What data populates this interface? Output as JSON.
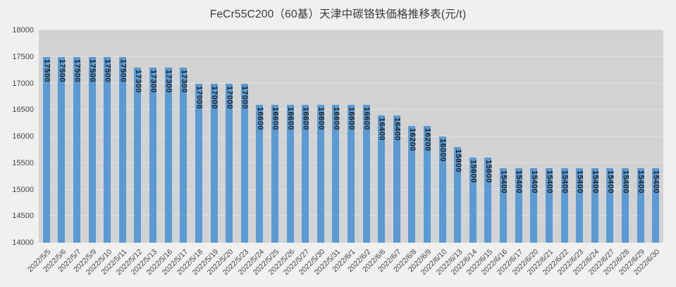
{
  "page": {
    "background": "#f0f0ef"
  },
  "chart_data": {
    "type": "bar",
    "title": "FeCr55C200（60基）天津中碳铬铁価格推移表(元/t)",
    "xlabel": "",
    "ylabel": "",
    "categories": [
      "2022/5/5",
      "2022/5/6",
      "2022/5/7",
      "2022/5/9",
      "2022/5/10",
      "2022/5/11",
      "2022/5/12",
      "2022/5/13",
      "2022/5/16",
      "2022/5/17",
      "2022/5/18",
      "2022/5/19",
      "2022/5/20",
      "2022/5/23",
      "2022/5/24",
      "2022/5/25",
      "2022/5/26",
      "2022/5/27",
      "2022/5/30",
      "2022/5/31",
      "2022/6/1",
      "2022/6/2",
      "2022/6/6",
      "2022/6/7",
      "2022/6/8",
      "2022/6/9",
      "2022/6/10",
      "2022/6/13",
      "2022/6/14",
      "2022/6/15",
      "2022/6/16",
      "2022/6/17",
      "2022/6/20",
      "2022/6/21",
      "2022/6/22",
      "2022/6/23",
      "2022/6/24",
      "2022/6/27",
      "2022/6/28",
      "2022/6/29",
      "2022/6/30"
    ],
    "values": [
      17500,
      17500,
      17500,
      17500,
      17500,
      17500,
      17300,
      17300,
      17300,
      17300,
      17000,
      17000,
      17000,
      17000,
      16600,
      16600,
      16600,
      16600,
      16600,
      16600,
      16600,
      16600,
      16400,
      16400,
      16200,
      16200,
      16000,
      15800,
      15600,
      15600,
      15400,
      15400,
      15400,
      15400,
      15400,
      15400,
      15400,
      15400,
      15400,
      15400,
      15400
    ],
    "ylim": [
      14000,
      18000
    ],
    "ytick_step": 500,
    "grid": true,
    "legend": false,
    "value_label_style": "inside-end-rotated-vertical",
    "x_label_rotation_deg": 45,
    "colors": {
      "bar": "#5b9bd5",
      "plot_background": "#d2d2d2",
      "gridline": "#e0e0e0",
      "value_label": "#1f1f1f",
      "axis_label": "#454545",
      "title": "#3a3a3a"
    }
  }
}
